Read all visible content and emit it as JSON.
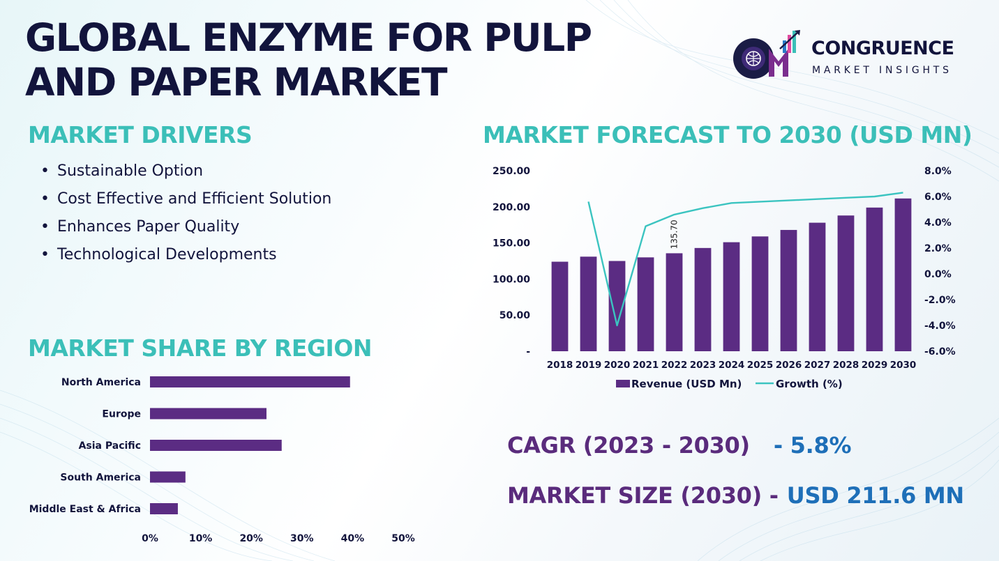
{
  "title": "GLOBAL ENZYME FOR PULP AND PAPER MARKET",
  "logo": {
    "name": "CONGRUENCE",
    "tagline": "MARKET INSIGHTS"
  },
  "colors": {
    "navy": "#12143c",
    "teal": "#3bbfb8",
    "purple": "#5a2b7c",
    "bar": "#5b2c83",
    "line": "#3bc4c0",
    "blue": "#1e6fb8"
  },
  "drivers": {
    "heading": "MARKET DRIVERS",
    "items": [
      "Sustainable Option",
      "Cost Effective and Efficient Solution",
      "Enhances Paper Quality",
      "Technological Developments"
    ]
  },
  "forecast": {
    "heading": "MARKET FORECAST TO 2030 (USD MN)"
  },
  "region": {
    "heading": "MARKET SHARE BY REGION"
  },
  "kpis": {
    "cagr_label": "CAGR (2023 - 2030)",
    "cagr_value": "- 5.8%",
    "size_label": "MARKET SIZE (2030) -",
    "size_value": "USD 211.6 MN"
  },
  "chart_data": [
    {
      "type": "bar",
      "combo_line": true,
      "title": "MARKET FORECAST TO 2030 (USD MN)",
      "categories": [
        "2018",
        "2019",
        "2020",
        "2021",
        "2022",
        "2023",
        "2024",
        "2025",
        "2026",
        "2027",
        "2028",
        "2029",
        "2030"
      ],
      "series": [
        {
          "name": "Revenue (USD Mn)",
          "type": "bar",
          "axis": "left",
          "values": [
            124,
            131,
            125,
            130,
            135.7,
            143,
            151,
            159,
            168,
            178,
            188,
            199,
            211.6
          ]
        },
        {
          "name": "Growth (%)",
          "type": "line",
          "axis": "right",
          "values": [
            null,
            5.6,
            -4.0,
            3.7,
            4.6,
            5.1,
            5.5,
            5.6,
            5.7,
            5.8,
            5.9,
            6.0,
            6.3
          ]
        }
      ],
      "data_labels": [
        {
          "category": "2022",
          "text": "135.70"
        }
      ],
      "y_left": {
        "range": [
          0,
          250
        ],
        "ticks": [
          "-",
          "50.00",
          "100.00",
          "150.00",
          "200.00",
          "250.00"
        ]
      },
      "y_right": {
        "range": [
          -6,
          8
        ],
        "ticks": [
          "-6.0%",
          "-4.0%",
          "-2.0%",
          "0.0%",
          "2.0%",
          "4.0%",
          "6.0%",
          "8.0%"
        ]
      },
      "grid": false,
      "legend": "bottom"
    },
    {
      "type": "bar",
      "orientation": "horizontal",
      "title": "MARKET SHARE BY REGION",
      "categories": [
        "North America",
        "Europe",
        "Asia Pacific",
        "South America",
        "Middle East & Africa"
      ],
      "values": [
        39.5,
        23,
        26,
        7,
        5.5
      ],
      "xlim": [
        0,
        50
      ],
      "x_ticks": [
        "0%",
        "10%",
        "20%",
        "30%",
        "40%",
        "50%"
      ],
      "grid": false,
      "legend": "none"
    }
  ]
}
